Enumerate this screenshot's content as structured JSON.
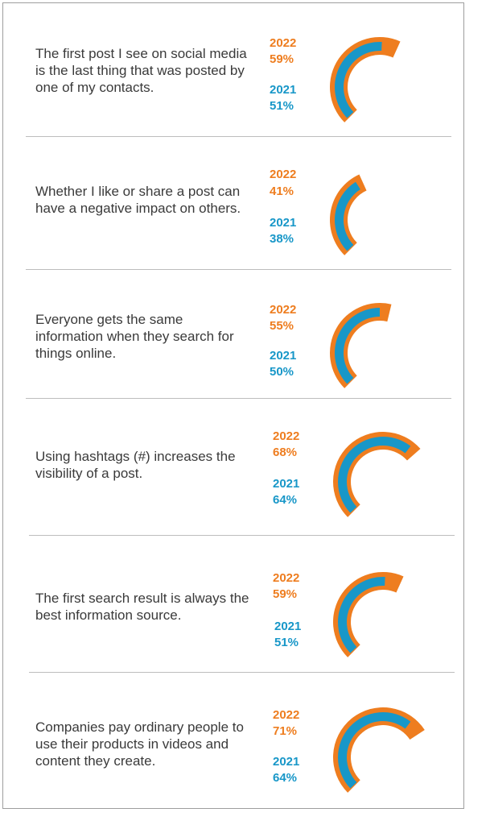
{
  "colors": {
    "y2022": "#ee7d1f",
    "y2021": "#1897c8"
  },
  "chart_data": {
    "type": "gauge",
    "series_names": [
      "2022",
      "2021"
    ],
    "items": [
      {
        "statement": "The first post I see on social media is the last thing that was posted by one of my contacts.",
        "y2022_label": "2022",
        "v2022_label": "59%",
        "y2021_label": "2021",
        "v2021_label": "51%",
        "v2022": 59,
        "v2021": 51
      },
      {
        "statement": "Whether I like or share a post can have a negative impact on others.",
        "y2022_label": "2022",
        "v2022_label": "41%",
        "y2021_label": "2021",
        "v2021_label": "38%",
        "v2022": 41,
        "v2021": 38
      },
      {
        "statement": "Everyone gets the same information when they search for things online.",
        "y2022_label": "2022",
        "v2022_label": "55%",
        "y2021_label": "2021",
        "v2021_label": "50%",
        "v2022": 55,
        "v2021": 50
      },
      {
        "statement": "Using hashtags (#) increases the visibility of a post.",
        "y2022_label": "2022",
        "v2022_label": "68%",
        "y2021_label": "2021",
        "v2021_label": "64%",
        "v2022": 68,
        "v2021": 64
      },
      {
        "statement": "The first search result is always the best information source.",
        "y2022_label": "2022",
        "v2022_label": "59%",
        "y2021_label": "2021",
        "v2021_label": "51%",
        "v2022": 59,
        "v2021": 51
      },
      {
        "statement": "Companies pay ordinary people to use their products in videos and content they create.",
        "y2022_label": "2022",
        "v2022_label": "71%",
        "y2021_label": "2021",
        "v2021_label": "64%",
        "v2022": 71,
        "v2021": 64
      }
    ]
  }
}
